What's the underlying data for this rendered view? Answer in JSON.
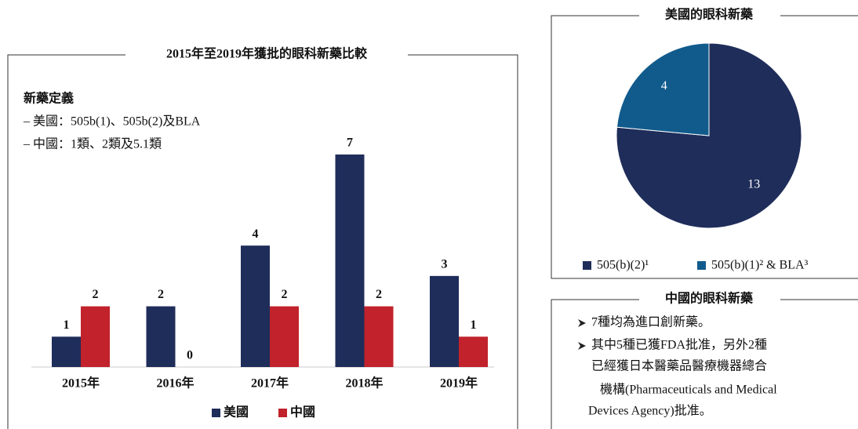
{
  "chart_data": [
    {
      "type": "bar",
      "title": "2015年至2019年獲批的眼科新藥比較",
      "annotations": [
        "新藥定義",
        "– 美國：505b(1)、505b(2)及BLA",
        "– 中國：1類、2類及5.1類"
      ],
      "categories": [
        "2015年",
        "2016年",
        "2017年",
        "2018年",
        "2019年"
      ],
      "series": [
        {
          "name": "美國",
          "color": "#1f2d5a",
          "values": [
            1,
            2,
            4,
            7,
            3
          ]
        },
        {
          "name": "中國",
          "color": "#c1222b",
          "values": [
            2,
            0,
            2,
            2,
            1
          ]
        }
      ],
      "ylim": [
        0,
        7
      ]
    },
    {
      "type": "pie",
      "title": "美國的眼科新藥",
      "categories": [
        "505(b)(2)¹",
        "505(b)(1)² & BLA³"
      ],
      "values": [
        13,
        4
      ],
      "colors": [
        "#1f2d5a",
        "#115b8c"
      ]
    }
  ],
  "panel": {
    "title": "中國的眼科新藥",
    "bullets": [
      [
        "7種均為進口創新藥。"
      ],
      [
        "其中5種已獲FDA批准，另外2種",
        "已經獲日本醫藥品醫療機器總合",
        "機構(Pharmaceuticals and Medical",
        "Devices Agency)批准。"
      ]
    ]
  }
}
